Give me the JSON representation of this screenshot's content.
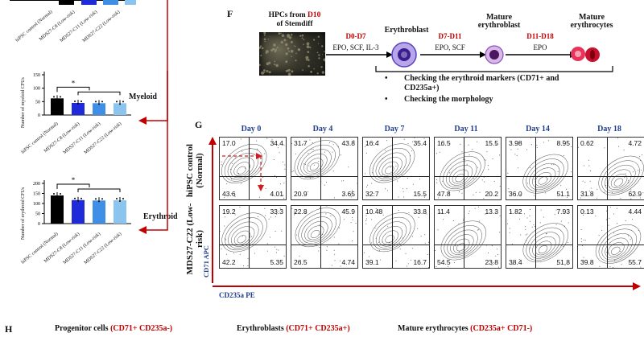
{
  "chart_data": [
    {
      "type": "bar",
      "ylabel": "Number of myeloid CFUs",
      "yticks": [
        "0",
        "50",
        "100",
        "150"
      ],
      "ylim": [
        0,
        150
      ],
      "categories": [
        "hiPSC control (Normal)",
        "MDS27-C8 (Low-risk)",
        "MDS27-C11 (Low-risk)",
        "MDS27-C22 (Low-risk)"
      ],
      "values": [
        62,
        45,
        44,
        44
      ],
      "colors": [
        "#000000",
        "#1f2ad8",
        "#3f8fe6",
        "#8cc4f0"
      ],
      "significance": "*",
      "label": "Myeloid"
    },
    {
      "type": "bar",
      "ylabel": "Number of erythroid CFUs",
      "yticks": [
        "0",
        "50",
        "100",
        "150",
        "200"
      ],
      "ylim": [
        0,
        200
      ],
      "categories": [
        "hiPSC control (Normal)",
        "MDS27-C8 (Low-risk)",
        "MDS27-C11 (Low-risk)",
        "MDS27-C22 (Low-risk)"
      ],
      "values": [
        140,
        117,
        115,
        116
      ],
      "colors": [
        "#000000",
        "#1f2ad8",
        "#3f8fe6",
        "#8cc4f0"
      ],
      "significance": "*",
      "label": "Erythroid"
    }
  ],
  "top_categories": [
    "hiPSC control (Normal)",
    "MDS27-C8 (Low-risk)",
    "MDS27-C11 (Low-risk)",
    "MDS27-C22 (Low-risk)"
  ],
  "panel_f": {
    "letter": "F",
    "photo_caption_1": "HPCs from ",
    "photo_caption_red": "D10",
    "photo_caption_2": "of Stemdiff",
    "steps": [
      {
        "days": "D0-D7",
        "factors": "EPO, SCF, IL-3"
      },
      {
        "days": "D7-D11",
        "factors": "EPO, SCF"
      },
      {
        "days": "D11-D18",
        "factors": "EPO"
      }
    ],
    "stages": [
      "Erythroblast",
      "Mature erythroblast",
      "Mature erythrocytes"
    ],
    "bullets": [
      "Checking the erythroid markers (CD71+ and CD235a+)",
      "Checking the morphology"
    ]
  },
  "panel_g": {
    "letter": "G",
    "days": [
      "Day 0",
      "Day 4",
      "Day 7",
      "Day 11",
      "Day 14",
      "Day 18"
    ],
    "rows": [
      {
        "label": "hiPSC control (Normal)",
        "quadrants": [
          {
            "ul": "17.0",
            "ur": "34.4",
            "ll": "43.6",
            "lr": "4.01"
          },
          {
            "ul": "31.7",
            "ur": "43.8",
            "ll": "20.9",
            "lr": "3.65"
          },
          {
            "ul": "16.4",
            "ur": "35.4",
            "ll": "32.7",
            "lr": "15.5"
          },
          {
            "ul": "16.5",
            "ur": "15.5",
            "ll": "47.8",
            "lr": "20.2"
          },
          {
            "ul": "3.98",
            "ur": "8.95",
            "ll": "36.0",
            "lr": "51.1"
          },
          {
            "ul": "0.62",
            "ur": "4.72",
            "ll": "31.8",
            "lr": "62.9"
          }
        ]
      },
      {
        "label": "MDS27-C22 (Low-risk)",
        "quadrants": [
          {
            "ul": "19.2",
            "ur": "33.3",
            "ll": "42.2",
            "lr": "5.35"
          },
          {
            "ul": "22.8",
            "ur": "45.9",
            "ll": "26.5",
            "lr": "4.74"
          },
          {
            "ul": "10.48",
            "ur": "33.8",
            "ll": "39.1",
            "lr": "16.7"
          },
          {
            "ul": "11.4",
            "ur": "13.3",
            "ll": "54.5",
            "lr": "23.8"
          },
          {
            "ul": "1.82",
            "ur": "7.93",
            "ll": "38.4",
            "lr": "51.8"
          },
          {
            "ul": "0.13",
            "ur": "4.44",
            "ll": "39.8",
            "lr": "55.7"
          }
        ]
      }
    ],
    "y_axis": "CD71 APC",
    "x_axis": "CD235a PE"
  },
  "panel_h": {
    "letter": "H",
    "groups": [
      {
        "name": "Progenitor cells ",
        "marker": "(CD71+ CD235a-)"
      },
      {
        "name": "Erythroblasts ",
        "marker": "(CD71+ CD235a+)"
      },
      {
        "name": "Mature erythrocytes ",
        "marker": "(CD235a+ CD71-)"
      }
    ]
  }
}
